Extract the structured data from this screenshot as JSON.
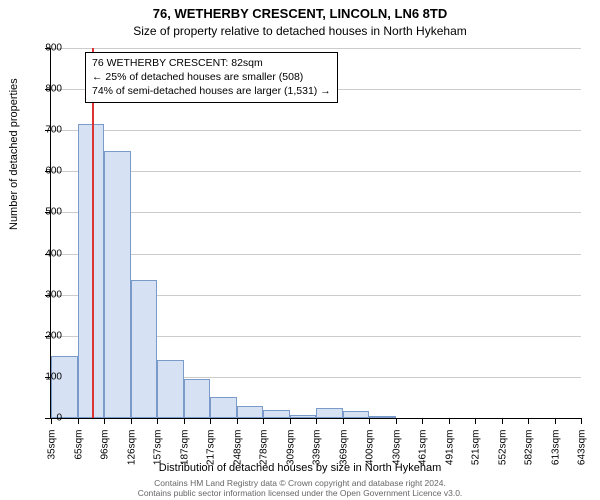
{
  "chart": {
    "type": "histogram",
    "title_main": "76, WETHERBY CRESCENT, LINCOLN, LN6 8TD",
    "title_sub": "Size of property relative to detached houses in North Hykeham",
    "y_axis_title": "Number of detached properties",
    "x_axis_title": "Distribution of detached houses by size in North Hykeham",
    "ylim": [
      0,
      900
    ],
    "ytick_step": 100,
    "background_color": "#ffffff",
    "grid_color": "#cccccc",
    "bar_fill": "#d6e2f3",
    "bar_border": "#7a9ac9",
    "marker_color": "#dd3333",
    "marker_x_value": 82,
    "x_categories": [
      "35sqm",
      "65sqm",
      "96sqm",
      "126sqm",
      "157sqm",
      "187sqm",
      "217sqm",
      "248sqm",
      "278sqm",
      "309sqm",
      "339sqm",
      "369sqm",
      "400sqm",
      "430sqm",
      "461sqm",
      "491sqm",
      "521sqm",
      "552sqm",
      "582sqm",
      "613sqm",
      "643sqm"
    ],
    "bar_values": [
      150,
      715,
      650,
      335,
      140,
      95,
      50,
      30,
      20,
      8,
      25,
      18,
      3,
      0,
      0,
      0,
      0,
      0,
      0,
      0
    ],
    "annotation": {
      "line1": "76 WETHERBY CRESCENT: 82sqm",
      "line2": "← 25% of detached houses are smaller (508)",
      "line3": "74% of semi-detached houses are larger (1,531) →"
    },
    "footer_line1": "Contains HM Land Registry data © Crown copyright and database right 2024.",
    "footer_line2": "Contains public sector information licensed under the Open Government Licence v3.0."
  }
}
